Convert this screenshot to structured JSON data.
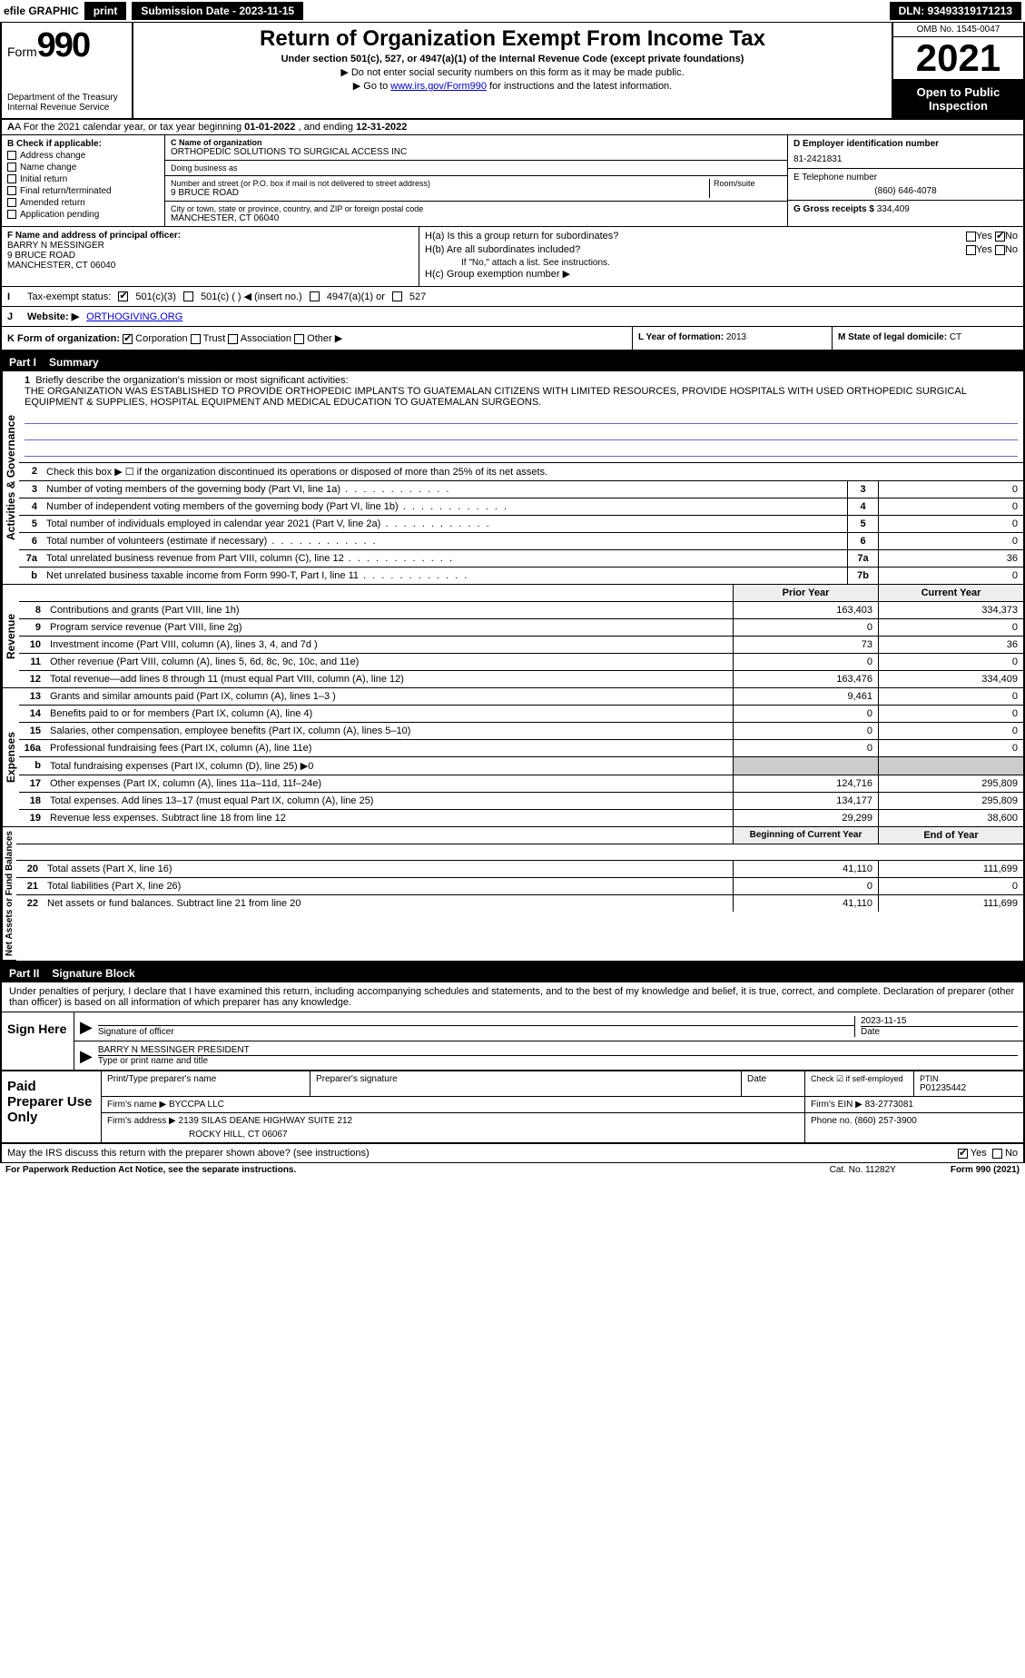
{
  "topbar": {
    "efile": "efile GRAPHIC",
    "print": "print",
    "submission": "Submission Date - 2023-11-15",
    "dln": "DLN: 93493319171213"
  },
  "header": {
    "form_word": "Form",
    "form_num": "990",
    "dept": "Department of the Treasury",
    "irs": "Internal Revenue Service",
    "title": "Return of Organization Exempt From Income Tax",
    "subtitle": "Under section 501(c), 527, or 4947(a)(1) of the Internal Revenue Code (except private foundations)",
    "note1": "▶ Do not enter social security numbers on this form as it may be made public.",
    "note2_pre": "▶ Go to ",
    "note2_link": "www.irs.gov/Form990",
    "note2_post": " for instructions and the latest information.",
    "omb": "OMB No. 1545-0047",
    "year": "2021",
    "open": "Open to Public Inspection"
  },
  "row_a": {
    "text_pre": "A For the 2021 calendar year, or tax year beginning ",
    "begin": "01-01-2022",
    "mid": "   , and ending ",
    "end": "12-31-2022"
  },
  "col_b": {
    "title": "B Check if applicable:",
    "opts": [
      "Address change",
      "Name change",
      "Initial return",
      "Final return/terminated",
      "Amended return",
      "Application pending"
    ]
  },
  "col_c": {
    "label_name": "C Name of organization",
    "org_name": "ORTHOPEDIC SOLUTIONS TO SURGICAL ACCESS INC",
    "dba_label": "Doing business as",
    "dba": "",
    "addr_label": "Number and street (or P.O. box if mail is not delivered to street address)",
    "room_label": "Room/suite",
    "addr": "9 BRUCE ROAD",
    "city_label": "City or town, state or province, country, and ZIP or foreign postal code",
    "city": "MANCHESTER, CT 06040"
  },
  "col_d": {
    "ein_label": "D Employer identification number",
    "ein": "81-2421831",
    "phone_label": "E Telephone number",
    "phone": "(860) 646-4078",
    "gross_label": "G Gross receipts $",
    "gross": "334,409"
  },
  "col_f": {
    "label": "F  Name and address of principal officer:",
    "name": "BARRY N MESSINGER",
    "addr1": "9 BRUCE ROAD",
    "addr2": "MANCHESTER, CT  06040"
  },
  "col_h": {
    "ha": "H(a)  Is this a group return for subordinates?",
    "hb": "H(b)  Are all subordinates included?",
    "hb_note": "If \"No,\" attach a list. See instructions.",
    "hc": "H(c)  Group exemption number ▶",
    "yes": "Yes",
    "no": "No"
  },
  "row_i": {
    "label": "Tax-exempt status:",
    "o1": "501(c)(3)",
    "o2": "501(c) (  ) ◀ (insert no.)",
    "o3": "4947(a)(1) or",
    "o4": "527"
  },
  "row_j": {
    "label": "Website: ▶",
    "url": "ORTHOGIVING.ORG"
  },
  "row_k": {
    "label": "K Form of organization:",
    "o1": "Corporation",
    "o2": "Trust",
    "o3": "Association",
    "o4": "Other ▶"
  },
  "row_l": {
    "label": "L Year of formation:",
    "val": "2013"
  },
  "row_m": {
    "label": "M State of legal domicile:",
    "val": "CT"
  },
  "part1": {
    "num": "Part I",
    "title": "Summary"
  },
  "mission": {
    "n": "1",
    "label": "Briefly describe the organization's mission or most significant activities:",
    "text": "THE ORGANIZATION WAS ESTABLISHED TO PROVIDE ORTHOPEDIC IMPLANTS TO GUATEMALAN CITIZENS WITH LIMITED RESOURCES, PROVIDE HOSPITALS WITH USED ORTHOPEDIC SURGICAL EQUIPMENT & SUPPLIES, HOSPITAL EQUIPMENT AND MEDICAL EDUCATION TO GUATEMALAN SURGEONS."
  },
  "lines_gov": [
    {
      "n": "2",
      "desc": "Check this box ▶ ☐  if the organization discontinued its operations or disposed of more than 25% of its net assets.",
      "box": "",
      "val": ""
    },
    {
      "n": "3",
      "desc": "Number of voting members of the governing body (Part VI, line 1a)",
      "box": "3",
      "val": "0"
    },
    {
      "n": "4",
      "desc": "Number of independent voting members of the governing body (Part VI, line 1b)",
      "box": "4",
      "val": "0"
    },
    {
      "n": "5",
      "desc": "Total number of individuals employed in calendar year 2021 (Part V, line 2a)",
      "box": "5",
      "val": "0"
    },
    {
      "n": "6",
      "desc": "Total number of volunteers (estimate if necessary)",
      "box": "6",
      "val": "0"
    },
    {
      "n": "7a",
      "desc": "Total unrelated business revenue from Part VIII, column (C), line 12",
      "box": "7a",
      "val": "36"
    },
    {
      "n": "b",
      "desc": "Net unrelated business taxable income from Form 990-T, Part I, line 11",
      "box": "7b",
      "val": "0"
    }
  ],
  "col_headers": {
    "prior": "Prior Year",
    "current": "Current Year"
  },
  "revenue": [
    {
      "n": "8",
      "desc": "Contributions and grants (Part VIII, line 1h)",
      "v1": "163,403",
      "v2": "334,373"
    },
    {
      "n": "9",
      "desc": "Program service revenue (Part VIII, line 2g)",
      "v1": "0",
      "v2": "0"
    },
    {
      "n": "10",
      "desc": "Investment income (Part VIII, column (A), lines 3, 4, and 7d )",
      "v1": "73",
      "v2": "36"
    },
    {
      "n": "11",
      "desc": "Other revenue (Part VIII, column (A), lines 5, 6d, 8c, 9c, 10c, and 11e)",
      "v1": "0",
      "v2": "0"
    },
    {
      "n": "12",
      "desc": "Total revenue—add lines 8 through 11 (must equal Part VIII, column (A), line 12)",
      "v1": "163,476",
      "v2": "334,409"
    }
  ],
  "expenses": [
    {
      "n": "13",
      "desc": "Grants and similar amounts paid (Part IX, column (A), lines 1–3 )",
      "v1": "9,461",
      "v2": "0"
    },
    {
      "n": "14",
      "desc": "Benefits paid to or for members (Part IX, column (A), line 4)",
      "v1": "0",
      "v2": "0"
    },
    {
      "n": "15",
      "desc": "Salaries, other compensation, employee benefits (Part IX, column (A), lines 5–10)",
      "v1": "0",
      "v2": "0"
    },
    {
      "n": "16a",
      "desc": "Professional fundraising fees (Part IX, column (A), line 11e)",
      "v1": "0",
      "v2": "0"
    },
    {
      "n": "b",
      "desc": "Total fundraising expenses (Part IX, column (D), line 25) ▶0",
      "v1": "",
      "v2": "",
      "shaded": true
    },
    {
      "n": "17",
      "desc": "Other expenses (Part IX, column (A), lines 11a–11d, 11f–24e)",
      "v1": "124,716",
      "v2": "295,809"
    },
    {
      "n": "18",
      "desc": "Total expenses. Add lines 13–17 (must equal Part IX, column (A), line 25)",
      "v1": "134,177",
      "v2": "295,809"
    },
    {
      "n": "19",
      "desc": "Revenue less expenses. Subtract line 18 from line 12",
      "v1": "29,299",
      "v2": "38,600"
    }
  ],
  "net_headers": {
    "begin": "Beginning of Current Year",
    "end": "End of Year"
  },
  "netassets": [
    {
      "n": "20",
      "desc": "Total assets (Part X, line 16)",
      "v1": "41,110",
      "v2": "111,699"
    },
    {
      "n": "21",
      "desc": "Total liabilities (Part X, line 26)",
      "v1": "0",
      "v2": "0"
    },
    {
      "n": "22",
      "desc": "Net assets or fund balances. Subtract line 21 from line 20",
      "v1": "41,110",
      "v2": "111,699"
    }
  ],
  "vert": {
    "gov": "Activities & Governance",
    "rev": "Revenue",
    "exp": "Expenses",
    "net": "Net Assets or Fund Balances"
  },
  "part2": {
    "num": "Part II",
    "title": "Signature Block"
  },
  "sig": {
    "penalty": "Under penalties of perjury, I declare that I have examined this return, including accompanying schedules and statements, and to the best of my knowledge and belief, it is true, correct, and complete. Declaration of preparer (other than officer) is based on all information of which preparer has any knowledge.",
    "sign_here": "Sign Here",
    "sig_officer": "Signature of officer",
    "date_label": "Date",
    "date": "2023-11-15",
    "name_title": "BARRY N MESSINGER  PRESIDENT",
    "type_label": "Type or print name and title"
  },
  "paid": {
    "title": "Paid Preparer Use Only",
    "h_prep_name": "Print/Type preparer's name",
    "h_prep_sig": "Preparer's signature",
    "h_date": "Date",
    "h_check": "Check ☑ if self-employed",
    "h_ptin": "PTIN",
    "ptin": "P01235442",
    "firm_name_label": "Firm's name    ▶",
    "firm_name": "BYCCPA LLC",
    "firm_ein_label": "Firm's EIN ▶",
    "firm_ein": "83-2773081",
    "firm_addr_label": "Firm's address ▶",
    "firm_addr1": "2139 SILAS DEANE HIGHWAY SUITE 212",
    "firm_addr2": "ROCKY HILL, CT  06067",
    "phone_label": "Phone no.",
    "phone": "(860) 257-3900"
  },
  "discuss": {
    "q": "May the IRS discuss this return with the preparer shown above? (see instructions)",
    "yes": "Yes",
    "no": "No"
  },
  "footer": {
    "pra": "For Paperwork Reduction Act Notice, see the separate instructions.",
    "cat": "Cat. No. 11282Y",
    "form": "Form 990 (2021)"
  }
}
